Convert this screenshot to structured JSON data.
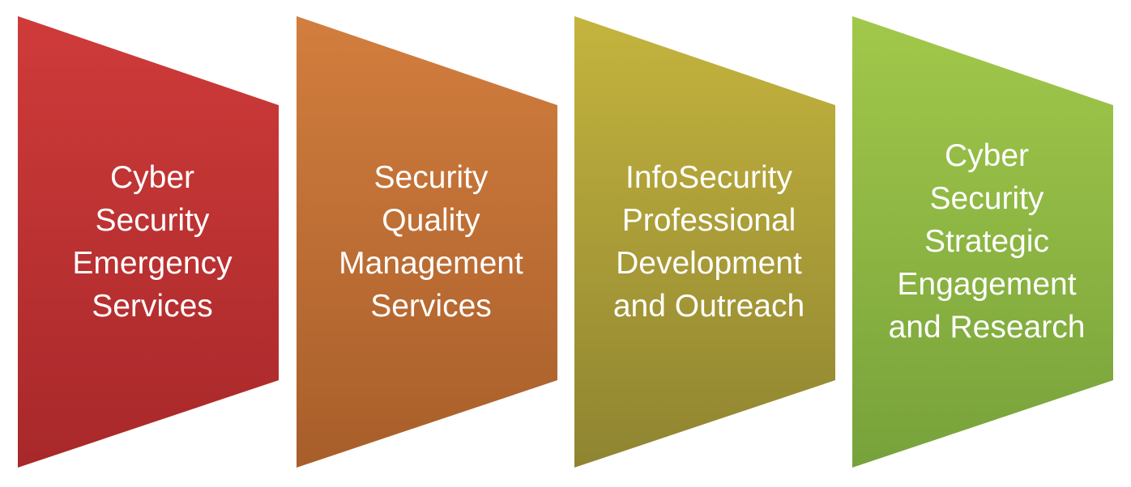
{
  "panels": [
    {
      "label": "Cyber\nSecurity\nEmergency\nServices",
      "color_top": "#cf3b3a",
      "color_bottom": "#a8282a"
    },
    {
      "label": "Security\nQuality\nManagement\nServices",
      "color_top": "#d27e3e",
      "color_bottom": "#a85e2a"
    },
    {
      "label": "InfoSecurity\nProfessional\nDevelopment\nand Outreach",
      "color_top": "#c4b43e",
      "color_bottom": "#8f8431"
    },
    {
      "label": "Cyber\nSecurity\nStrategic\nEngagement\nand Research",
      "color_top": "#a2c84a",
      "color_bottom": "#77a23b"
    }
  ]
}
